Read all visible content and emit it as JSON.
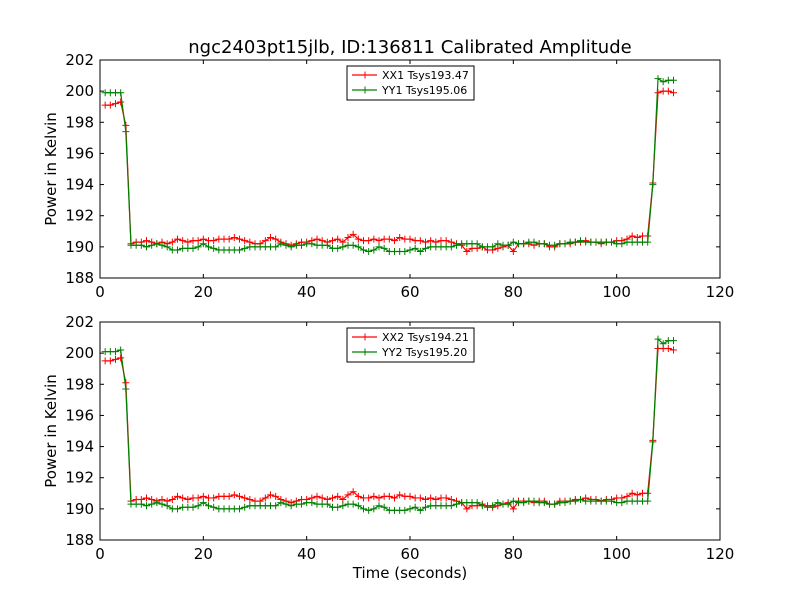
{
  "chart_data": {
    "type": "line",
    "title": "ngc2403pt15jlb, ID:136811 Calibrated Amplitude",
    "xlabel": "Time (seconds)",
    "ylabel": "Power in Kelvin",
    "xlim": [
      0,
      120
    ],
    "ylim": [
      188,
      202
    ],
    "xticks": [
      "0",
      "20",
      "40",
      "60",
      "80",
      "100",
      "120"
    ],
    "yticks": [
      "188",
      "190",
      "192",
      "194",
      "196",
      "198",
      "200",
      "202"
    ],
    "legend_position": "top-center",
    "grid": false,
    "panels": [
      {
        "series": [
          {
            "name": "XX1 Tsys193.47",
            "color": "#ff0000",
            "x": [
              1,
              2,
              3,
              4,
              5,
              6,
              7,
              8,
              9,
              10,
              11,
              12,
              13,
              14,
              15,
              16,
              17,
              18,
              19,
              20,
              21,
              22,
              23,
              24,
              25,
              26,
              27,
              28,
              29,
              30,
              31,
              32,
              33,
              34,
              35,
              36,
              37,
              38,
              39,
              40,
              41,
              42,
              43,
              44,
              45,
              46,
              47,
              48,
              49,
              50,
              51,
              52,
              53,
              54,
              55,
              56,
              57,
              58,
              59,
              60,
              61,
              62,
              63,
              64,
              65,
              66,
              67,
              68,
              69,
              70,
              71,
              72,
              73,
              74,
              75,
              76,
              77,
              78,
              79,
              80,
              81,
              82,
              83,
              84,
              85,
              86,
              87,
              88,
              89,
              90,
              91,
              92,
              93,
              94,
              95,
              96,
              97,
              98,
              99,
              100,
              101,
              102,
              103,
              104,
              105,
              106,
              107,
              108,
              109,
              110,
              111
            ],
            "y": [
              199.1,
              199.1,
              199.2,
              199.3,
              197.8,
              190.2,
              190.3,
              190.3,
              190.4,
              190.3,
              190.2,
              190.3,
              190.2,
              190.3,
              190.5,
              190.4,
              190.3,
              190.4,
              190.4,
              190.5,
              190.4,
              190.4,
              190.5,
              190.5,
              190.5,
              190.6,
              190.5,
              190.4,
              190.3,
              190.2,
              190.2,
              190.4,
              190.6,
              190.5,
              190.3,
              190.2,
              190.1,
              190.2,
              190.3,
              190.3,
              190.4,
              190.5,
              190.4,
              190.3,
              190.4,
              190.5,
              190.3,
              190.6,
              190.8,
              190.5,
              190.4,
              190.4,
              190.5,
              190.4,
              190.5,
              190.5,
              190.4,
              190.6,
              190.5,
              190.5,
              190.4,
              190.4,
              190.3,
              190.4,
              190.3,
              190.4,
              190.4,
              190.3,
              190.2,
              190.1,
              189.7,
              189.9,
              189.9,
              190.0,
              189.8,
              189.8,
              189.9,
              190.0,
              190.1,
              189.7,
              190.2,
              190.2,
              190.2,
              190.1,
              190.2,
              190.2,
              190.0,
              190.0,
              190.2,
              190.2,
              190.2,
              190.3,
              190.3,
              190.4,
              190.3,
              190.3,
              190.2,
              190.3,
              190.3,
              190.4,
              190.4,
              190.5,
              190.7,
              190.6,
              190.7,
              190.7,
              194.1,
              199.9,
              200.0,
              200.0,
              199.9
            ]
          },
          {
            "name": "YY1 Tsys195.06",
            "color": "#008000",
            "x": [
              1,
              2,
              3,
              4,
              5,
              6,
              7,
              8,
              9,
              10,
              11,
              12,
              13,
              14,
              15,
              16,
              17,
              18,
              19,
              20,
              21,
              22,
              23,
              24,
              25,
              26,
              27,
              28,
              29,
              30,
              31,
              32,
              33,
              34,
              35,
              36,
              37,
              38,
              39,
              40,
              41,
              42,
              43,
              44,
              45,
              46,
              47,
              48,
              49,
              50,
              51,
              52,
              53,
              54,
              55,
              56,
              57,
              58,
              59,
              60,
              61,
              62,
              63,
              64,
              65,
              66,
              67,
              68,
              69,
              70,
              71,
              72,
              73,
              74,
              75,
              76,
              77,
              78,
              79,
              80,
              81,
              82,
              83,
              84,
              85,
              86,
              87,
              88,
              89,
              90,
              91,
              92,
              93,
              94,
              95,
              96,
              97,
              98,
              99,
              100,
              101,
              102,
              103,
              104,
              105,
              106,
              107,
              108,
              109,
              110,
              111
            ],
            "y": [
              199.9,
              199.9,
              199.9,
              199.9,
              197.4,
              190.1,
              190.1,
              190.1,
              190.0,
              190.1,
              190.2,
              190.1,
              190.0,
              189.8,
              189.8,
              189.9,
              189.9,
              189.9,
              190.0,
              190.2,
              190.0,
              189.9,
              189.8,
              189.8,
              189.8,
              189.8,
              189.8,
              189.9,
              190.0,
              190.0,
              190.0,
              190.0,
              190.0,
              190.0,
              190.2,
              190.1,
              190.0,
              190.1,
              190.1,
              190.2,
              190.2,
              190.1,
              190.1,
              190.1,
              189.9,
              189.9,
              190.0,
              190.1,
              190.1,
              190.0,
              189.8,
              189.7,
              189.8,
              190.0,
              189.9,
              189.7,
              189.7,
              189.7,
              189.7,
              189.8,
              189.9,
              189.7,
              189.9,
              190.0,
              190.0,
              190.0,
              190.0,
              190.0,
              190.1,
              190.2,
              190.2,
              190.2,
              190.2,
              190.0,
              190.0,
              190.0,
              190.2,
              190.1,
              190.1,
              190.3,
              190.2,
              190.2,
              190.3,
              190.3,
              190.2,
              190.2,
              190.1,
              190.1,
              190.2,
              190.2,
              190.3,
              190.3,
              190.4,
              190.3,
              190.3,
              190.3,
              190.3,
              190.3,
              190.3,
              190.2,
              190.2,
              190.3,
              190.3,
              190.3,
              190.3,
              190.3,
              194.0,
              200.8,
              200.6,
              200.7,
              200.7
            ]
          }
        ]
      },
      {
        "series": [
          {
            "name": "XX2 Tsys194.21",
            "color": "#ff0000",
            "x": [
              1,
              2,
              3,
              4,
              5,
              6,
              7,
              8,
              9,
              10,
              11,
              12,
              13,
              14,
              15,
              16,
              17,
              18,
              19,
              20,
              21,
              22,
              23,
              24,
              25,
              26,
              27,
              28,
              29,
              30,
              31,
              32,
              33,
              34,
              35,
              36,
              37,
              38,
              39,
              40,
              41,
              42,
              43,
              44,
              45,
              46,
              47,
              48,
              49,
              50,
              51,
              52,
              53,
              54,
              55,
              56,
              57,
              58,
              59,
              60,
              61,
              62,
              63,
              64,
              65,
              66,
              67,
              68,
              69,
              70,
              71,
              72,
              73,
              74,
              75,
              76,
              77,
              78,
              79,
              80,
              81,
              82,
              83,
              84,
              85,
              86,
              87,
              88,
              89,
              90,
              91,
              92,
              93,
              94,
              95,
              96,
              97,
              98,
              99,
              100,
              101,
              102,
              103,
              104,
              105,
              106,
              107,
              108,
              109,
              110,
              111
            ],
            "y": [
              199.5,
              199.5,
              199.6,
              199.7,
              198.1,
              190.5,
              190.6,
              190.6,
              190.7,
              190.6,
              190.5,
              190.6,
              190.5,
              190.6,
              190.8,
              190.7,
              190.6,
              190.7,
              190.7,
              190.8,
              190.7,
              190.7,
              190.8,
              190.8,
              190.8,
              190.9,
              190.8,
              190.7,
              190.6,
              190.5,
              190.5,
              190.7,
              190.9,
              190.8,
              190.6,
              190.5,
              190.4,
              190.5,
              190.6,
              190.6,
              190.7,
              190.8,
              190.7,
              190.6,
              190.7,
              190.8,
              190.6,
              190.9,
              191.1,
              190.8,
              190.7,
              190.7,
              190.8,
              190.7,
              190.8,
              190.8,
              190.7,
              190.9,
              190.8,
              190.8,
              190.7,
              190.7,
              190.6,
              190.7,
              190.6,
              190.7,
              190.7,
              190.6,
              190.5,
              190.4,
              190.0,
              190.2,
              190.2,
              190.3,
              190.1,
              190.1,
              190.2,
              190.3,
              190.4,
              190.0,
              190.5,
              190.5,
              190.5,
              190.4,
              190.5,
              190.5,
              190.3,
              190.3,
              190.5,
              190.5,
              190.5,
              190.6,
              190.6,
              190.7,
              190.6,
              190.6,
              190.5,
              190.6,
              190.6,
              190.7,
              190.7,
              190.8,
              191.0,
              190.9,
              191.0,
              191.0,
              194.4,
              200.3,
              200.3,
              200.3,
              200.2
            ]
          },
          {
            "name": "YY2 Tsys195.20",
            "color": "#008000",
            "x": [
              1,
              2,
              3,
              4,
              5,
              6,
              7,
              8,
              9,
              10,
              11,
              12,
              13,
              14,
              15,
              16,
              17,
              18,
              19,
              20,
              21,
              22,
              23,
              24,
              25,
              26,
              27,
              28,
              29,
              30,
              31,
              32,
              33,
              34,
              35,
              36,
              37,
              38,
              39,
              40,
              41,
              42,
              43,
              44,
              45,
              46,
              47,
              48,
              49,
              50,
              51,
              52,
              53,
              54,
              55,
              56,
              57,
              58,
              59,
              60,
              61,
              62,
              63,
              64,
              65,
              66,
              67,
              68,
              69,
              70,
              71,
              72,
              73,
              74,
              75,
              76,
              77,
              78,
              79,
              80,
              81,
              82,
              83,
              84,
              85,
              86,
              87,
              88,
              89,
              90,
              91,
              92,
              93,
              94,
              95,
              96,
              97,
              98,
              99,
              100,
              101,
              102,
              103,
              104,
              105,
              106,
              107,
              108,
              109,
              110,
              111
            ],
            "y": [
              200.1,
              200.1,
              200.1,
              200.2,
              197.7,
              190.3,
              190.3,
              190.3,
              190.2,
              190.3,
              190.4,
              190.3,
              190.2,
              190.0,
              190.0,
              190.1,
              190.1,
              190.1,
              190.2,
              190.4,
              190.2,
              190.1,
              190.0,
              190.0,
              190.0,
              190.0,
              190.0,
              190.1,
              190.2,
              190.2,
              190.2,
              190.2,
              190.2,
              190.2,
              190.4,
              190.3,
              190.2,
              190.3,
              190.3,
              190.4,
              190.4,
              190.3,
              190.3,
              190.3,
              190.1,
              190.1,
              190.2,
              190.3,
              190.3,
              190.2,
              190.0,
              189.9,
              190.0,
              190.2,
              190.1,
              189.9,
              189.9,
              189.9,
              189.9,
              190.0,
              190.1,
              189.9,
              190.1,
              190.2,
              190.2,
              190.2,
              190.2,
              190.2,
              190.3,
              190.4,
              190.4,
              190.4,
              190.4,
              190.2,
              190.2,
              190.2,
              190.4,
              190.3,
              190.3,
              190.5,
              190.4,
              190.4,
              190.5,
              190.5,
              190.4,
              190.4,
              190.3,
              190.3,
              190.4,
              190.4,
              190.5,
              190.5,
              190.6,
              190.5,
              190.5,
              190.5,
              190.5,
              190.5,
              190.5,
              190.4,
              190.4,
              190.5,
              190.5,
              190.5,
              190.5,
              190.5,
              194.3,
              200.9,
              200.6,
              200.8,
              200.8
            ]
          }
        ]
      }
    ]
  }
}
